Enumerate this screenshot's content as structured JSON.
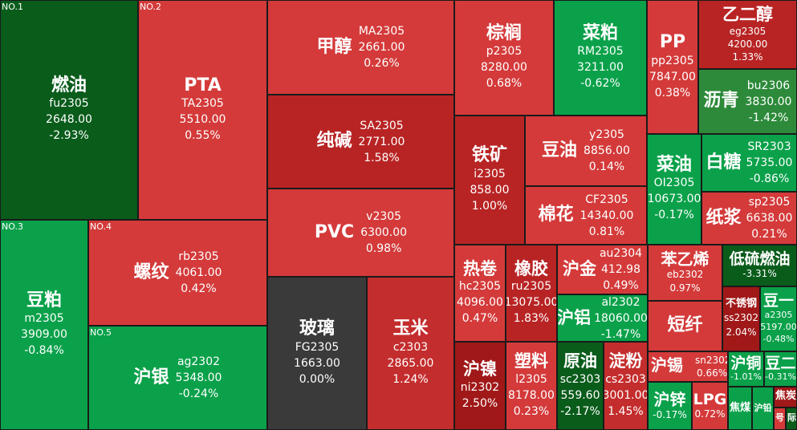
{
  "colors": {
    "deep_green": "#0a5c1b",
    "green": "#0aa14a",
    "mid_green": "#2d8a3a",
    "deep_red": "#a01818",
    "red": "#d43a3a",
    "light_red": "#d94444",
    "flat": "#3a3a3a"
  },
  "items": [
    {
      "rank": "NO.1",
      "name": "燃油",
      "code": "fu2305",
      "price": "2648.00",
      "change": "-2.93%"
    },
    {
      "rank": "NO.2",
      "name": "PTA",
      "code": "TA2305",
      "price": "5510.00",
      "change": "0.55%"
    },
    {
      "rank": "NO.3",
      "name": "豆粕",
      "code": "m2305",
      "price": "3909.00",
      "change": "-0.84%"
    },
    {
      "rank": "NO.4",
      "name": "螺纹",
      "code": "rb2305",
      "price": "4061.00",
      "change": "0.42%"
    },
    {
      "rank": "NO.5",
      "name": "沪银",
      "code": "ag2302",
      "price": "5348.00",
      "change": "-0.24%"
    },
    {
      "name": "甲醇",
      "code": "MA2305",
      "price": "2661.00",
      "change": "0.26%"
    },
    {
      "name": "纯碱",
      "code": "SA2305",
      "price": "2771.00",
      "change": "1.58%"
    },
    {
      "name": "PVC",
      "code": "v2305",
      "price": "6300.00",
      "change": "0.98%"
    },
    {
      "name": "玻璃",
      "code": "FG2305",
      "price": "1663.00",
      "change": "0.00%"
    },
    {
      "name": "玉米",
      "code": "c2303",
      "price": "2865.00",
      "change": "1.24%"
    },
    {
      "name": "棕榈",
      "code": "p2305",
      "price": "8280.00",
      "change": "0.68%"
    },
    {
      "name": "菜粕",
      "code": "RM2305",
      "price": "3211.00",
      "change": "-0.62%"
    },
    {
      "name": "PP",
      "code": "pp2305",
      "price": "7847.00",
      "change": "0.38%"
    },
    {
      "name": "乙二醇",
      "code": "eg2305",
      "price": "4200.00",
      "change": "1.33%"
    },
    {
      "name": "沥青",
      "code": "bu2306",
      "price": "3830.00",
      "change": "-1.42%"
    },
    {
      "name": "铁矿",
      "code": "i2305",
      "price": "858.00",
      "change": "1.00%"
    },
    {
      "name": "豆油",
      "code": "y2305",
      "price": "8856.00",
      "change": "0.14%"
    },
    {
      "name": "棉花",
      "code": "CF2305",
      "price": "14340.00",
      "change": "0.81%"
    },
    {
      "name": "菜油",
      "code": "OI2305",
      "price": "10673.00",
      "change": "-0.17%"
    },
    {
      "name": "白糖",
      "code": "SR2303",
      "price": "5735.00",
      "change": "-0.86%"
    },
    {
      "name": "纸浆",
      "code": "sp2305",
      "price": "6638.00",
      "change": "0.21%"
    },
    {
      "name": "热卷",
      "code": "hc2305",
      "price": "4096.00",
      "change": "0.47%"
    },
    {
      "name": "橡胶",
      "code": "ru2305",
      "price": "13075.00",
      "change": "1.83%"
    },
    {
      "name": "沪金",
      "code": "au2304",
      "price": "412.98",
      "change": "0.49%"
    },
    {
      "name": "沪铝",
      "code": "al2302",
      "price": "18060.00",
      "change": "-1.47%"
    },
    {
      "name": "苯乙烯",
      "code": "eb2302",
      "change": "0.97%"
    },
    {
      "name": "低硫燃油",
      "change": "-3.31%"
    },
    {
      "name": "短纤"
    },
    {
      "name": "不锈钢",
      "code": "ss2302",
      "change": "2.04%"
    },
    {
      "name": "豆一",
      "code": "a2305",
      "price": "5197.00",
      "change": "-0.48%"
    },
    {
      "name": "沪镍",
      "code": "ni2302",
      "change": "2.50%"
    },
    {
      "name": "塑料",
      "code": "l2305",
      "price": "8178.00",
      "change": "0.23%"
    },
    {
      "name": "原油",
      "code": "sc2303",
      "price": "559.60",
      "change": "-2.17%"
    },
    {
      "name": "淀粉",
      "code": "cs2303",
      "price": "3001.00",
      "change": "1.45%"
    },
    {
      "name": "沪锡",
      "code": "sn2302",
      "change": "0.66%"
    },
    {
      "name": "沪铜",
      "change": "-1.01%"
    },
    {
      "name": "豆二",
      "change": "-0.31%"
    },
    {
      "name": "沪锌",
      "change": "-0.17%"
    },
    {
      "name": "LPG",
      "change": "0.72%"
    },
    {
      "name": "焦煤"
    },
    {
      "name": "沪铅"
    },
    {
      "name": "焦炭"
    },
    {
      "name": "号"
    },
    {
      "name": "际"
    }
  ]
}
